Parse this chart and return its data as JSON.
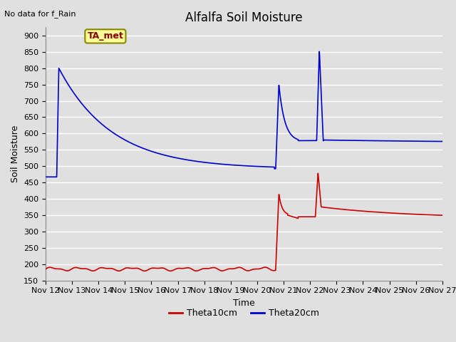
{
  "title": "Alfalfa Soil Moisture",
  "xlabel": "Time",
  "ylabel": "Soil Moisture",
  "top_left_text": "No data for f_Rain",
  "legend_label": "TA_met",
  "ylim": [
    150,
    925
  ],
  "yticks": [
    150,
    200,
    250,
    300,
    350,
    400,
    450,
    500,
    550,
    600,
    650,
    700,
    750,
    800,
    850,
    900
  ],
  "x_tick_labels": [
    "Nov 12",
    "Nov 13",
    "Nov 14",
    "Nov 15",
    "Nov 16",
    "Nov 17",
    "Nov 18",
    "Nov 19",
    "Nov 20",
    "Nov 21",
    "Nov 22",
    "Nov 23",
    "Nov 24",
    "Nov 25",
    "Nov 26",
    "Nov 27"
  ],
  "bg_color": "#e0e0e0",
  "plot_bg_color": "#e0e0e0",
  "grid_color": "#ffffff",
  "theta10_color": "#cc0000",
  "theta20_color": "#0000cc",
  "legend_bg": "#ffff99",
  "legend_border": "#888800",
  "title_fontsize": 12,
  "axis_label_fontsize": 9,
  "tick_fontsize": 8
}
